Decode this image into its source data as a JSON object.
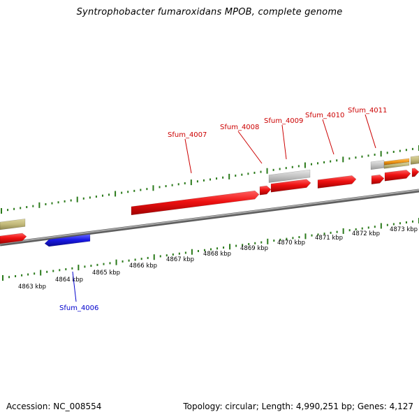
{
  "title": "Syntrophobacter fumaroxidans MPOB, complete genome",
  "footer": {
    "accession": "Accession: NC_008554",
    "summary": "Topology: circular; Length: 4,990,251 bp; Genes: 4,127"
  },
  "colors": {
    "backbone": "#8a8a8a",
    "tick": "#2a7a1a",
    "cds_forward": "#ee1111",
    "cds_reverse": "#1a1ae6",
    "rna": "#c8c8c8",
    "olive": "#c2b97a",
    "orange": "#f29a1a",
    "label_red": "#cc0000",
    "label_blue": "#0000cc"
  },
  "ticks": [
    {
      "label": "4863 kbp"
    },
    {
      "label": "4864 kbp"
    },
    {
      "label": "4865 kbp"
    },
    {
      "label": "4866 kbp"
    },
    {
      "label": "4867 kbp"
    },
    {
      "label": "4868 kbp"
    },
    {
      "label": "4869 kbp"
    },
    {
      "label": "4870 kbp"
    },
    {
      "label": "4871 kbp"
    },
    {
      "label": "4872 kbp"
    },
    {
      "label": "4873 kbp"
    }
  ],
  "gene_labels": [
    {
      "id": "sfum-4006",
      "text": "Sfum_4006",
      "color": "label_blue"
    },
    {
      "id": "sfum-4007",
      "text": "Sfum_4007",
      "color": "label_red"
    },
    {
      "id": "sfum-4008",
      "text": "Sfum_4008",
      "color": "label_red"
    },
    {
      "id": "sfum-4009",
      "text": "Sfum_4009",
      "color": "label_red"
    },
    {
      "id": "sfum-4010",
      "text": "Sfum_4010",
      "color": "label_red"
    },
    {
      "id": "sfum-4011",
      "text": "Sfum_4011",
      "color": "label_red"
    }
  ]
}
